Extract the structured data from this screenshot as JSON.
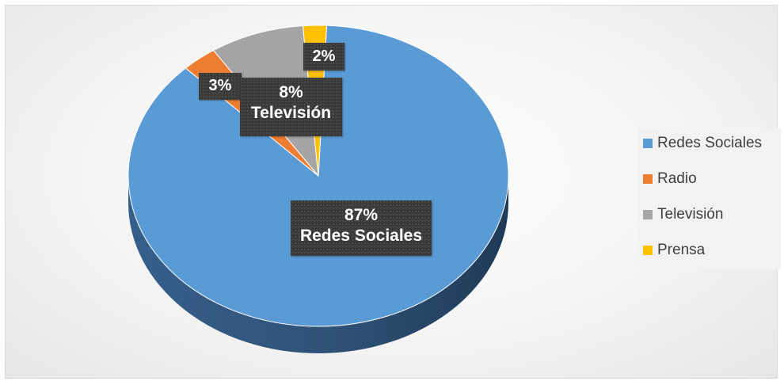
{
  "chart_data": {
    "type": "pie",
    "style": "3d",
    "categories": [
      "Redes Sociales",
      "Radio",
      "Televisión",
      "Prensa"
    ],
    "values": [
      87,
      3,
      8,
      2
    ],
    "colors": [
      "#5b9bd5",
      "#ed7d31",
      "#a5a5a5",
      "#ffc000"
    ],
    "value_labels": [
      "87%",
      "3%",
      "8%",
      "2%"
    ],
    "slice_labels": [
      "Redes Sociales",
      "",
      "Televisión",
      ""
    ],
    "legend": {
      "position": "right",
      "entries": [
        "Redes Sociales",
        "Radio",
        "Televisión",
        "Prensa"
      ]
    },
    "title": ""
  }
}
